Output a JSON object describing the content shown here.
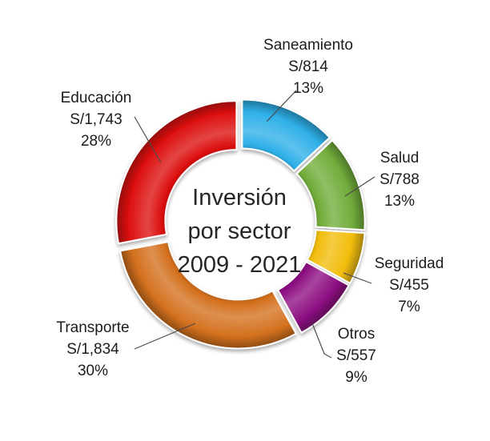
{
  "page": {
    "background": "#ffffff"
  },
  "chart_data": {
    "type": "pie",
    "variant": "exploded-donut",
    "title": "Inversión por sector 2009 - 2021",
    "center_label_lines": [
      "Inversión",
      "por sector",
      "2009 - 2021"
    ],
    "labels_style": "outside-with-leader-lines",
    "legend_position": "none",
    "start_angle_deg": 0,
    "direction": "clockwise",
    "inner_radius_ratio": 0.59,
    "segments": [
      {
        "label": "Saneamiento",
        "amount": "S/814",
        "percent": "13%",
        "value": 13,
        "color": "#2fb0e8"
      },
      {
        "label": "Salud",
        "amount": "S/788",
        "percent": "13%",
        "value": 13,
        "color": "#72ad3b"
      },
      {
        "label": "Seguridad",
        "amount": "S/455",
        "percent": "7%",
        "value": 7,
        "color": "#f2bd0d"
      },
      {
        "label": "Otros",
        "amount": "S/557",
        "percent": "9%",
        "value": 9,
        "color": "#8e1183"
      },
      {
        "label": "Transporte",
        "amount": "S/1,834",
        "percent": "30%",
        "value": 30,
        "color": "#d4711f"
      },
      {
        "label": "Educación",
        "amount": "S/1,743",
        "percent": "28%",
        "value": 28,
        "color": "#dd1111"
      }
    ]
  }
}
